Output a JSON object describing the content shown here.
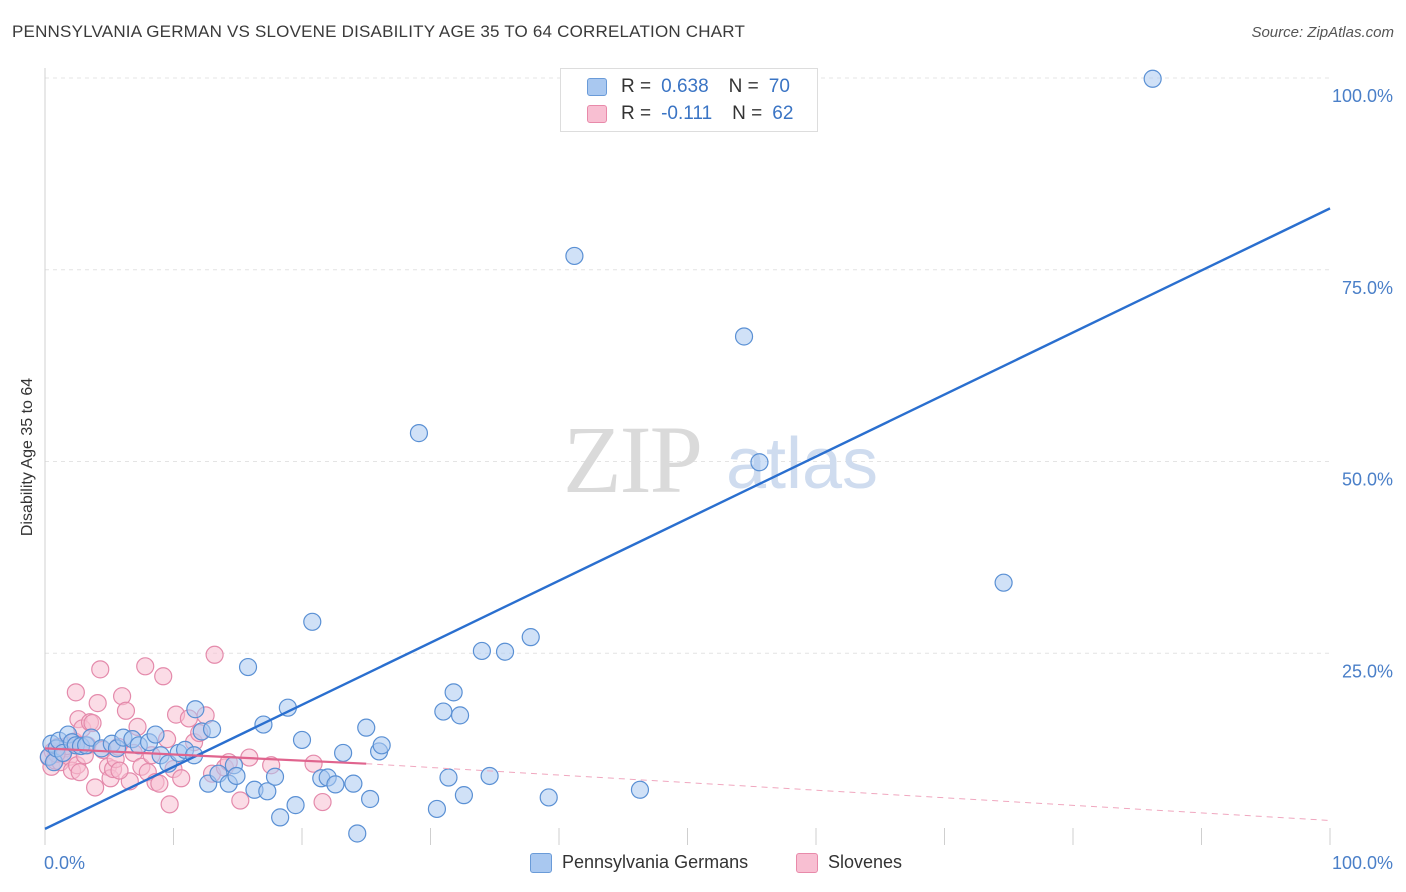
{
  "title": "PENNSYLVANIA GERMAN VS SLOVENE DISABILITY AGE 35 TO 64 CORRELATION CHART",
  "source": "Source: ZipAtlas.com",
  "watermark": {
    "zip": "ZIP",
    "atlas": "atlas"
  },
  "legend": {
    "rows": [
      {
        "r_label": "R =",
        "r_value": "0.638",
        "n_label": "N =",
        "n_value": "70",
        "color": "#a9c8f0",
        "border": "#6a9bd8"
      },
      {
        "r_label": "R =",
        "r_value": "-0.111",
        "n_label": "N =",
        "n_value": "62",
        "color": "#f8bfd2",
        "border": "#e88aaa"
      }
    ]
  },
  "bottom_legend": [
    {
      "label": "Pennsylvania Germans",
      "color": "#a9c8f0",
      "border": "#6a9bd8"
    },
    {
      "label": "Slovenes",
      "color": "#f8bfd2",
      "border": "#e88aaa"
    }
  ],
  "chart_data": {
    "type": "scatter",
    "title": "PENNSYLVANIA GERMAN VS SLOVENE DISABILITY AGE 35 TO 64 CORRELATION CHART",
    "xlabel": "",
    "ylabel": "Disability Age 35 to 64",
    "xlim": [
      0,
      100
    ],
    "ylim": [
      0,
      100
    ],
    "x_tick_labels": [
      {
        "value": 0,
        "label": "0.0%"
      },
      {
        "value": 100,
        "label": "100.0%"
      }
    ],
    "y_tick_labels": [
      {
        "value": 25,
        "label": "25.0%"
      },
      {
        "value": 50,
        "label": "50.0%"
      },
      {
        "value": 75,
        "label": "75.0%"
      },
      {
        "value": 100,
        "label": "100.0%"
      }
    ],
    "grid": true,
    "series": [
      {
        "name": "Pennsylvania Germans",
        "color": "#a9c8f0",
        "stroke": "#5a90d4",
        "points": [
          [
            0.3,
            11.5
          ],
          [
            0.5,
            13.2
          ],
          [
            0.7,
            10.8
          ],
          [
            0.9,
            12.6
          ],
          [
            1.1,
            13.6
          ],
          [
            1.4,
            12.0
          ],
          [
            1.8,
            14.4
          ],
          [
            2.1,
            13.4
          ],
          [
            2.4,
            13.0
          ],
          [
            2.8,
            12.9
          ],
          [
            3.2,
            13.0
          ],
          [
            3.6,
            14.0
          ],
          [
            4.4,
            12.6
          ],
          [
            5.2,
            13.2
          ],
          [
            5.6,
            12.6
          ],
          [
            6.1,
            14.0
          ],
          [
            6.8,
            13.8
          ],
          [
            7.3,
            13.0
          ],
          [
            8.1,
            13.4
          ],
          [
            8.6,
            14.4
          ],
          [
            9.0,
            11.7
          ],
          [
            9.6,
            10.6
          ],
          [
            10.4,
            12.0
          ],
          [
            10.9,
            12.4
          ],
          [
            11.7,
            17.7
          ],
          [
            11.6,
            11.7
          ],
          [
            12.2,
            14.8
          ],
          [
            12.7,
            8.0
          ],
          [
            13.0,
            15.1
          ],
          [
            13.5,
            9.3
          ],
          [
            14.3,
            8.0
          ],
          [
            14.7,
            10.4
          ],
          [
            14.9,
            9.0
          ],
          [
            15.8,
            23.2
          ],
          [
            16.3,
            7.2
          ],
          [
            17.0,
            15.7
          ],
          [
            17.3,
            7.0
          ],
          [
            17.9,
            8.9
          ],
          [
            18.3,
            3.6
          ],
          [
            18.9,
            17.9
          ],
          [
            19.5,
            5.2
          ],
          [
            20.0,
            13.7
          ],
          [
            20.8,
            29.1
          ],
          [
            21.5,
            8.7
          ],
          [
            22.0,
            8.8
          ],
          [
            22.6,
            7.9
          ],
          [
            23.2,
            12.0
          ],
          [
            24.0,
            8.0
          ],
          [
            24.3,
            1.5
          ],
          [
            25.0,
            15.3
          ],
          [
            25.3,
            6.0
          ],
          [
            26.0,
            12.2
          ],
          [
            26.2,
            13.0
          ],
          [
            29.1,
            53.7
          ],
          [
            30.5,
            4.7
          ],
          [
            31.0,
            17.4
          ],
          [
            31.4,
            8.8
          ],
          [
            31.8,
            19.9
          ],
          [
            32.3,
            16.9
          ],
          [
            32.6,
            6.5
          ],
          [
            34.0,
            25.3
          ],
          [
            34.6,
            9.0
          ],
          [
            35.8,
            25.2
          ],
          [
            37.8,
            27.1
          ],
          [
            39.2,
            6.2
          ],
          [
            41.2,
            76.8
          ],
          [
            46.3,
            7.2
          ],
          [
            54.4,
            66.3
          ],
          [
            55.6,
            49.9
          ],
          [
            74.6,
            34.2
          ],
          [
            86.2,
            99.9
          ]
        ]
      },
      {
        "name": "Slovenes",
        "color": "#f8bfd2",
        "stroke": "#e48aab",
        "points": [
          [
            0.3,
            11.4
          ],
          [
            0.5,
            10.2
          ],
          [
            0.6,
            12.2
          ],
          [
            0.8,
            11.0
          ],
          [
            1.0,
            12.8
          ],
          [
            1.2,
            10.8
          ],
          [
            1.4,
            11.9
          ],
          [
            1.6,
            12.6
          ],
          [
            1.9,
            11.5
          ],
          [
            2.1,
            9.7
          ],
          [
            2.3,
            13.5
          ],
          [
            2.5,
            10.4
          ],
          [
            2.7,
            9.5
          ],
          [
            2.6,
            16.4
          ],
          [
            2.4,
            19.9
          ],
          [
            2.9,
            15.2
          ],
          [
            3.1,
            11.7
          ],
          [
            3.3,
            13.0
          ],
          [
            3.5,
            16.0
          ],
          [
            3.7,
            15.9
          ],
          [
            3.9,
            7.5
          ],
          [
            4.1,
            18.5
          ],
          [
            4.3,
            22.9
          ],
          [
            4.5,
            12.4
          ],
          [
            4.9,
            10.2
          ],
          [
            5.1,
            8.7
          ],
          [
            5.3,
            9.9
          ],
          [
            5.5,
            11.2
          ],
          [
            5.7,
            12.8
          ],
          [
            6.0,
            19.4
          ],
          [
            6.3,
            17.5
          ],
          [
            6.6,
            8.3
          ],
          [
            6.9,
            12.0
          ],
          [
            7.2,
            15.4
          ],
          [
            7.5,
            10.2
          ],
          [
            7.8,
            23.3
          ],
          [
            8.0,
            9.5
          ],
          [
            8.3,
            11.7
          ],
          [
            8.6,
            8.2
          ],
          [
            8.9,
            8.0
          ],
          [
            9.2,
            22.0
          ],
          [
            9.5,
            13.8
          ],
          [
            9.7,
            5.3
          ],
          [
            10.0,
            9.9
          ],
          [
            10.2,
            17.0
          ],
          [
            10.6,
            8.7
          ],
          [
            11.2,
            16.5
          ],
          [
            11.6,
            13.4
          ],
          [
            12.0,
            14.6
          ],
          [
            12.5,
            16.9
          ],
          [
            13.0,
            9.3
          ],
          [
            13.2,
            24.8
          ],
          [
            14.0,
            10.1
          ],
          [
            14.3,
            10.8
          ],
          [
            15.2,
            5.8
          ],
          [
            15.9,
            11.4
          ],
          [
            17.6,
            10.4
          ],
          [
            20.9,
            10.6
          ],
          [
            21.6,
            5.6
          ],
          [
            1.7,
            12.9
          ],
          [
            0.9,
            11.9
          ],
          [
            5.8,
            9.7
          ]
        ]
      }
    ],
    "trend_lines": [
      {
        "series": "Pennsylvania Germans",
        "x0": 0,
        "y0": 2.1,
        "x1": 100,
        "y1": 83.0,
        "style": "solid"
      },
      {
        "series": "Slovenes",
        "x0": 0,
        "y0": 12.6,
        "x1": 25,
        "y1": 10.6,
        "style": "solid"
      },
      {
        "series": "Slovenes",
        "x0": 25,
        "y0": 10.6,
        "x1": 100,
        "y1": 3.2,
        "style": "dashed"
      }
    ]
  }
}
